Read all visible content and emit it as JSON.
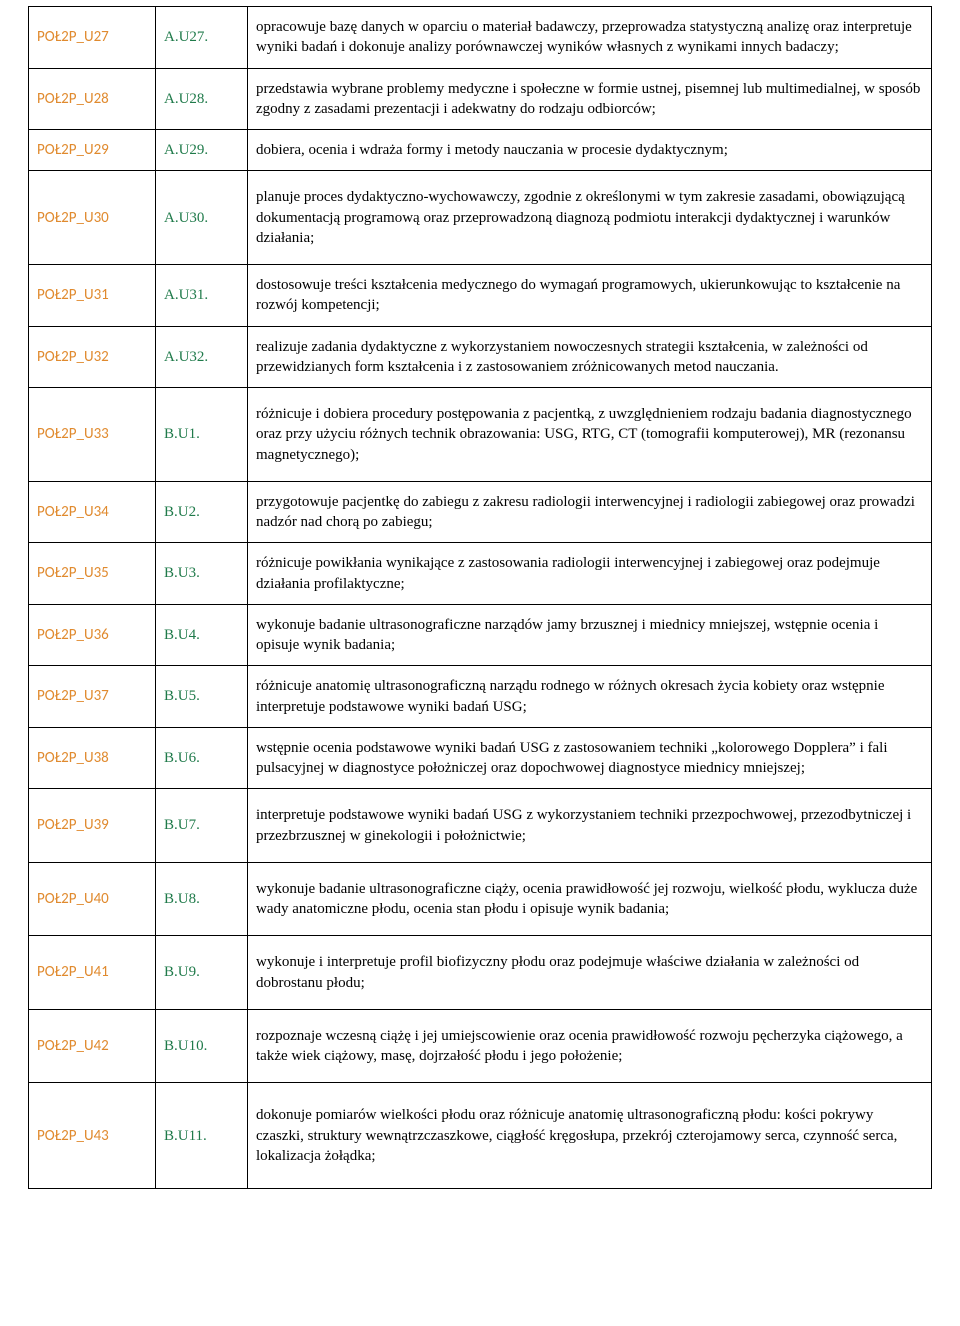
{
  "colors": {
    "col1": "#e08a2e",
    "col2": "#1f7a4a"
  },
  "rows": [
    {
      "c1": "POŁ2P_U27",
      "c2": "A.U27.",
      "c3": "opracowuje bazę danych w oparciu o materiał badawczy, przeprowadza statystyczną analizę oraz interpretuje wyniki badań i dokonuje analizy porównawczej wyników własnych z wynikami innych badaczy;",
      "pad": ""
    },
    {
      "c1": "POŁ2P_U28",
      "c2": "A.U28.",
      "c3": "przedstawia wybrane problemy medyczne i społeczne w formie ustnej, pisemnej lub multimedialnej, w sposób zgodny z zasadami prezentacji i adekwatny do rodzaju odbiorców;",
      "pad": ""
    },
    {
      "c1": "POŁ2P_U29",
      "c2": "A.U29.",
      "c3": "dobiera, ocenia i wdraża formy i metody nauczania w procesie dydaktycznym;",
      "pad": ""
    },
    {
      "c1": "POŁ2P_U30",
      "c2": "A.U30.",
      "c3": "planuje proces dydaktyczno-wychowawczy, zgodnie z określonymi w tym zakresie zasadami, obowiązującą dokumentacją programową oraz przeprowadzoną diagnozą podmiotu interakcji dydaktycznej i warunków działania;",
      "pad": "tall"
    },
    {
      "c1": "POŁ2P_U31",
      "c2": "A.U31.",
      "c3": "dostosowuje treści kształcenia medycznego do wymagań programowych, ukierunkowując to kształcenie na rozwój kompetencji;",
      "pad": ""
    },
    {
      "c1": "POŁ2P_U32",
      "c2": "A.U32.",
      "c3": "realizuje zadania dydaktyczne z wykorzystaniem nowoczesnych strategii kształcenia, w zależności od przewidzianych form kształcenia i z zastosowaniem zróżnicowanych metod nauczania.",
      "pad": ""
    },
    {
      "c1": "POŁ2P_U33",
      "c2": "B.U1.",
      "c3": "różnicuje i dobiera procedury postępowania z pacjentką, z uwzględnieniem rodzaju badania diagnostycznego oraz przy użyciu różnych technik obrazowania: USG, RTG, CT (tomografii komputerowej), MR (rezonansu magnetycznego);",
      "pad": "tall"
    },
    {
      "c1": "POŁ2P_U34",
      "c2": "B.U2.",
      "c3": "przygotowuje pacjentkę do zabiegu z zakresu radiologii interwencyjnej i radiologii zabiegowej oraz prowadzi nadzór nad chorą po zabiegu;",
      "pad": ""
    },
    {
      "c1": "POŁ2P_U35",
      "c2": "B.U3.",
      "c3": "różnicuje powikłania wynikające z zastosowania radiologii interwencyjnej i zabiegowej oraz podejmuje działania profilaktyczne;",
      "pad": ""
    },
    {
      "c1": "POŁ2P_U36",
      "c2": "B.U4.",
      "c3": "wykonuje badanie ultrasonograficzne narządów jamy brzusznej i miednicy mniejszej, wstępnie ocenia i opisuje wynik badania;",
      "pad": ""
    },
    {
      "c1": "POŁ2P_U37",
      "c2": "B.U5.",
      "c3": "różnicuje anatomię ultrasonograficzną narządu rodnego w różnych okresach życia kobiety oraz wstępnie interpretuje podstawowe wyniki badań USG;",
      "pad": ""
    },
    {
      "c1": "POŁ2P_U38",
      "c2": "B.U6.",
      "c3": "wstępnie ocenia podstawowe wyniki badań USG z zastosowaniem techniki „kolorowego Dopplera” i fali pulsacyjnej w diagnostyce położniczej oraz dopochwowej diagnostyce miednicy mniejszej;",
      "pad": ""
    },
    {
      "c1": "POŁ2P_U39",
      "c2": "B.U7.",
      "c3": "interpretuje podstawowe wyniki badań USG z wykorzystaniem techniki przezpochwowej, przezodbytniczej i przezbrzusznej w ginekologii i położnictwie;",
      "pad": "tall"
    },
    {
      "c1": "POŁ2P_U40",
      "c2": "B.U8.",
      "c3": "wykonuje badanie ultrasonograficzne ciąży, ocenia prawidłowość jej rozwoju, wielkość płodu, wyklucza duże wady anatomiczne płodu, ocenia stan płodu i opisuje wynik badania;",
      "pad": "tall"
    },
    {
      "c1": "POŁ2P_U41",
      "c2": "B.U9.",
      "c3": "wykonuje i interpretuje profil biofizyczny płodu oraz podejmuje właściwe działania w zależności od dobrostanu płodu;",
      "pad": "tall"
    },
    {
      "c1": "POŁ2P_U42",
      "c2": "B.U10.",
      "c3": "rozpoznaje wczesną ciążę i jej umiejscowienie oraz ocenia prawidłowość rozwoju pęcherzyka ciążowego, a także wiek ciążowy, masę, dojrzałość płodu i jego położenie;",
      "pad": "tall"
    },
    {
      "c1": "POŁ2P_U43",
      "c2": "B.U11.",
      "c3": "dokonuje pomiarów wielkości płodu oraz różnicuje anatomię ultrasonograficzną płodu: kości pokrywy czaszki, struktury wewnątrzczaszkowe, ciągłość kręgosłupa, przekrój czterojamowy serca, czynność serca, lokalizacja żołądka;",
      "pad": "taller"
    }
  ]
}
